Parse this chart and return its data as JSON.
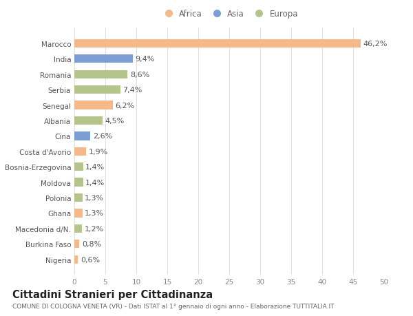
{
  "categories": [
    "Nigeria",
    "Burkina Faso",
    "Macedonia d/N.",
    "Ghana",
    "Polonia",
    "Moldova",
    "Bosnia-Erzegovina",
    "Costa d'Avorio",
    "Cina",
    "Albania",
    "Senegal",
    "Serbia",
    "Romania",
    "India",
    "Marocco"
  ],
  "values": [
    0.6,
    0.8,
    1.2,
    1.3,
    1.3,
    1.4,
    1.4,
    1.9,
    2.6,
    4.5,
    6.2,
    7.4,
    8.6,
    9.4,
    46.2
  ],
  "colors": [
    "#f5b989",
    "#f5b989",
    "#b5c48a",
    "#f5b989",
    "#b5c48a",
    "#b5c48a",
    "#b5c48a",
    "#f5b989",
    "#7b9fd4",
    "#b5c48a",
    "#f5b989",
    "#b5c48a",
    "#b5c48a",
    "#7b9fd4",
    "#f5b989"
  ],
  "labels": [
    "0,6%",
    "0,8%",
    "1,2%",
    "1,3%",
    "1,3%",
    "1,4%",
    "1,4%",
    "1,9%",
    "2,6%",
    "4,5%",
    "6,2%",
    "7,4%",
    "8,6%",
    "9,4%",
    "46,2%"
  ],
  "legend": [
    {
      "label": "Africa",
      "color": "#f5b989"
    },
    {
      "label": "Asia",
      "color": "#7b9fd4"
    },
    {
      "label": "Europa",
      "color": "#b5c48a"
    }
  ],
  "xlim": [
    0,
    50
  ],
  "xticks": [
    0,
    5,
    10,
    15,
    20,
    25,
    30,
    35,
    40,
    45,
    50
  ],
  "title": "Cittadini Stranieri per Cittadinanza",
  "subtitle": "COMUNE DI COLOGNA VENETA (VR) - Dati ISTAT al 1° gennaio di ogni anno - Elaborazione TUTTITALIA.IT",
  "bg_color": "#ffffff",
  "plot_bg_color": "#ffffff",
  "grid_color": "#e0e0e0",
  "label_fontsize": 8,
  "tick_fontsize": 7.5,
  "title_fontsize": 10.5,
  "subtitle_fontsize": 6.5,
  "bar_height": 0.55
}
